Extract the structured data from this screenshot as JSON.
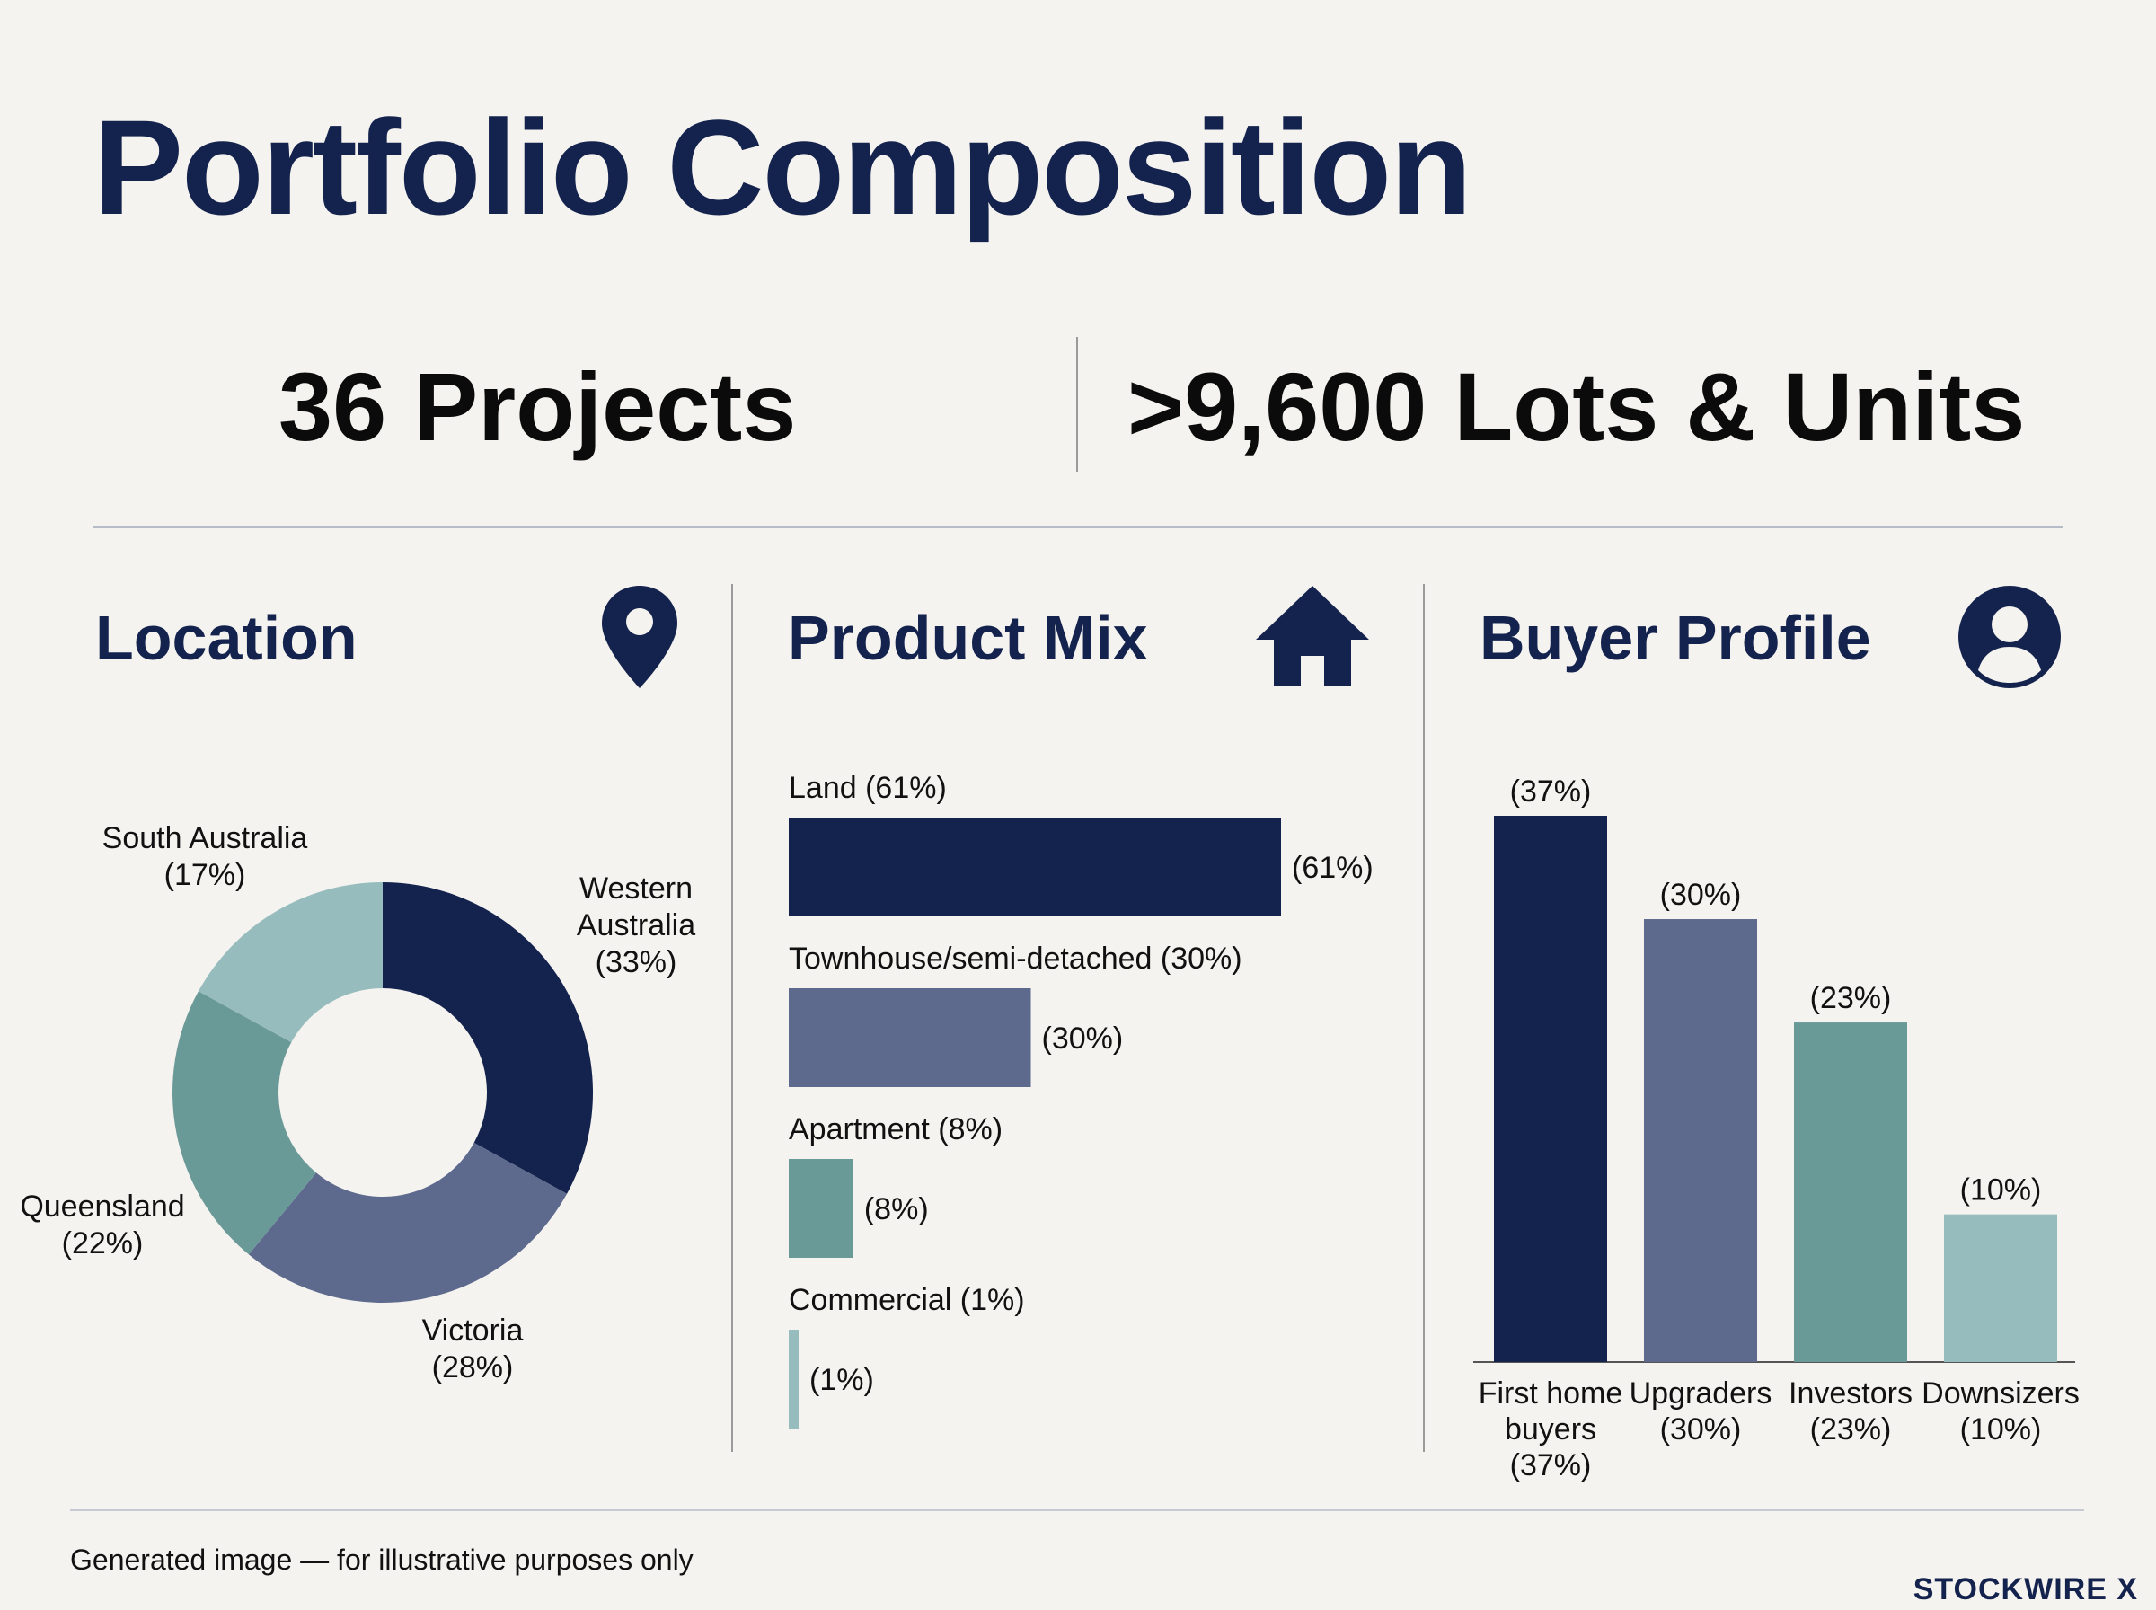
{
  "page": {
    "title": "Portfolio Composition",
    "stat_projects": "36 Projects",
    "stat_lots": ">9,600 Lots & Units",
    "footer_note": "Generated image — for illustrative purposes only",
    "brand": "STOCKWIRE X"
  },
  "sections": {
    "location_title": "Location",
    "product_title": "Product Mix",
    "buyer_title": "Buyer Profile"
  },
  "icons": {
    "location": "map-pin-icon",
    "product": "house-icon",
    "buyer": "user-circle-icon"
  },
  "colors": {
    "navy": "#14234d",
    "slate": "#5d6a8e",
    "teal": "#6a9a98",
    "light_teal": "#96bcbd",
    "background": "#f5f3ef"
  },
  "chart_data": [
    {
      "type": "pie",
      "name": "Location",
      "slices": [
        {
          "label_lines": [
            "Western",
            "Australia",
            "(33%)"
          ],
          "value": 33,
          "color": "#14234d"
        },
        {
          "label_lines": [
            "Victoria",
            "(28%)"
          ],
          "value": 28,
          "color": "#5d6a8e"
        },
        {
          "label_lines": [
            "Queensland",
            "(22%)"
          ],
          "value": 22,
          "color": "#6a9a98"
        },
        {
          "label_lines": [
            "South Australia",
            "(17%)"
          ],
          "value": 17,
          "color": "#96bcbd"
        }
      ]
    },
    {
      "type": "bar",
      "orientation": "horizontal",
      "name": "Product Mix",
      "categories": [
        "Land (61%)",
        "Townhouse/semi-detached (30%)",
        "Apartment (8%)",
        "Commercial (1%)"
      ],
      "values": [
        61,
        30,
        8,
        1
      ],
      "value_labels": [
        "(61%)",
        "(30%)",
        "(8%)",
        "(1%)"
      ],
      "colors": [
        "#14234d",
        "#5d6a8e",
        "#6a9a98",
        "#96bcbd"
      ]
    },
    {
      "type": "bar",
      "orientation": "vertical",
      "name": "Buyer Profile",
      "categories": [
        [
          "First home",
          "buyers",
          "(37%)"
        ],
        [
          "Upgraders",
          "(30%)"
        ],
        [
          "Investors",
          "(23%)"
        ],
        [
          "Downsizers",
          "(10%)"
        ]
      ],
      "values": [
        37,
        30,
        23,
        10
      ],
      "value_labels": [
        "(37%)",
        "(30%)",
        "(23%)",
        "(10%)"
      ],
      "colors": [
        "#14234d",
        "#5d6a8e",
        "#6a9a98",
        "#96bcbd"
      ]
    }
  ]
}
